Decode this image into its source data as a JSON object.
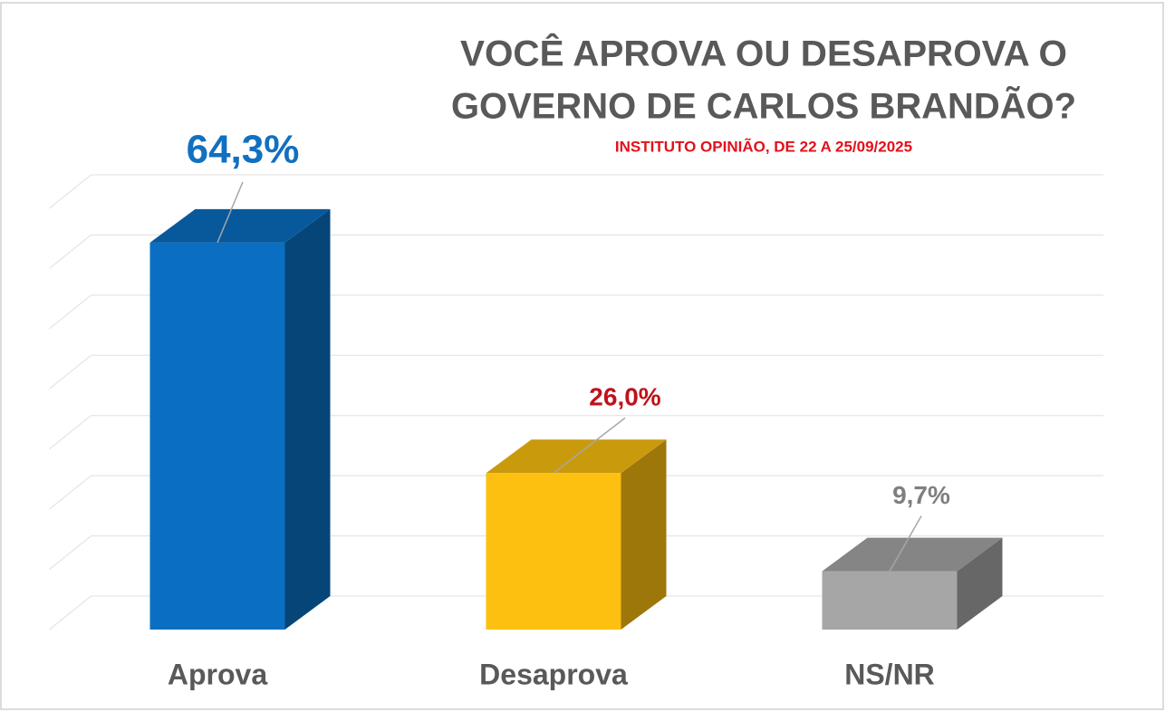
{
  "chart_data": {
    "type": "bar3d",
    "title": [
      "VOCÊ APROVA OU DESAPROVA O",
      "GOVERNO DE CARLOS BRANDÃO?"
    ],
    "subtitle": "INSTITUTO OPINIÃO, DE 22 A 25/09/2025",
    "categories": [
      "Aprova",
      "Desaprova",
      "NS/NR"
    ],
    "values": [
      64.3,
      26.0,
      9.7
    ],
    "value_labels": [
      "64,3%",
      "26,0%",
      "9,7%"
    ],
    "colors": [
      "#0a6fc2",
      "#fdc010",
      "#a6a6a6"
    ],
    "label_colors": [
      "#1170c0",
      "#c0111a",
      "#7f7f7f"
    ],
    "ylim": [
      0,
      70
    ],
    "yticks": [
      0,
      10,
      20,
      30,
      40,
      50,
      60,
      70
    ],
    "grid": true
  }
}
